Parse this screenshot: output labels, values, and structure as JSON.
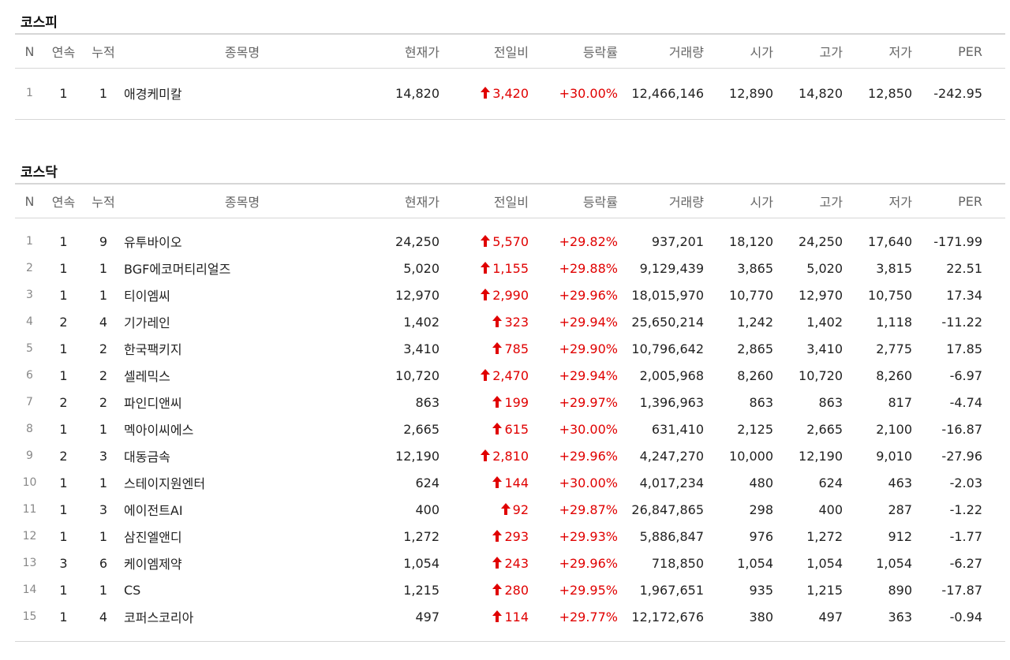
{
  "columns": {
    "n": "N",
    "consecutive": "연속",
    "cumulative": "누적",
    "name": "종목명",
    "price": "현재가",
    "change": "전일비",
    "rate": "등락률",
    "volume": "거래량",
    "open": "시가",
    "high": "고가",
    "low": "저가",
    "per": "PER"
  },
  "colors": {
    "up": "#e00000"
  },
  "icons": {
    "change": "up-arrow-icon"
  },
  "kospi": {
    "title": "코스피",
    "rows": [
      {
        "n": "1",
        "consecutive": "1",
        "cumulative": "1",
        "name": "애경케미칼",
        "price": "14,820",
        "change": "3,420",
        "rate": "+30.00%",
        "volume": "12,466,146",
        "open": "12,890",
        "high": "14,820",
        "low": "12,850",
        "per": "-242.95"
      }
    ]
  },
  "kosdaq": {
    "title": "코스닥",
    "rows": [
      {
        "n": "1",
        "consecutive": "1",
        "cumulative": "9",
        "name": "유투바이오",
        "price": "24,250",
        "change": "5,570",
        "rate": "+29.82%",
        "volume": "937,201",
        "open": "18,120",
        "high": "24,250",
        "low": "17,640",
        "per": "-171.99"
      },
      {
        "n": "2",
        "consecutive": "1",
        "cumulative": "1",
        "name": "BGF에코머티리얼즈",
        "price": "5,020",
        "change": "1,155",
        "rate": "+29.88%",
        "volume": "9,129,439",
        "open": "3,865",
        "high": "5,020",
        "low": "3,815",
        "per": "22.51"
      },
      {
        "n": "3",
        "consecutive": "1",
        "cumulative": "1",
        "name": "티이엠씨",
        "price": "12,970",
        "change": "2,990",
        "rate": "+29.96%",
        "volume": "18,015,970",
        "open": "10,770",
        "high": "12,970",
        "low": "10,750",
        "per": "17.34"
      },
      {
        "n": "4",
        "consecutive": "2",
        "cumulative": "4",
        "name": "기가레인",
        "price": "1,402",
        "change": "323",
        "rate": "+29.94%",
        "volume": "25,650,214",
        "open": "1,242",
        "high": "1,402",
        "low": "1,118",
        "per": "-11.22"
      },
      {
        "n": "5",
        "consecutive": "1",
        "cumulative": "2",
        "name": "한국팩키지",
        "price": "3,410",
        "change": "785",
        "rate": "+29.90%",
        "volume": "10,796,642",
        "open": "2,865",
        "high": "3,410",
        "low": "2,775",
        "per": "17.85"
      },
      {
        "n": "6",
        "consecutive": "1",
        "cumulative": "2",
        "name": "셀레믹스",
        "price": "10,720",
        "change": "2,470",
        "rate": "+29.94%",
        "volume": "2,005,968",
        "open": "8,260",
        "high": "10,720",
        "low": "8,260",
        "per": "-6.97"
      },
      {
        "n": "7",
        "consecutive": "2",
        "cumulative": "2",
        "name": "파인디앤씨",
        "price": "863",
        "change": "199",
        "rate": "+29.97%",
        "volume": "1,396,963",
        "open": "863",
        "high": "863",
        "low": "817",
        "per": "-4.74"
      },
      {
        "n": "8",
        "consecutive": "1",
        "cumulative": "1",
        "name": "멕아이씨에스",
        "price": "2,665",
        "change": "615",
        "rate": "+30.00%",
        "volume": "631,410",
        "open": "2,125",
        "high": "2,665",
        "low": "2,100",
        "per": "-16.87"
      },
      {
        "n": "9",
        "consecutive": "2",
        "cumulative": "3",
        "name": "대동금속",
        "price": "12,190",
        "change": "2,810",
        "rate": "+29.96%",
        "volume": "4,247,270",
        "open": "10,000",
        "high": "12,190",
        "low": "9,010",
        "per": "-27.96"
      },
      {
        "n": "10",
        "consecutive": "1",
        "cumulative": "1",
        "name": "스테이지원엔터",
        "price": "624",
        "change": "144",
        "rate": "+30.00%",
        "volume": "4,017,234",
        "open": "480",
        "high": "624",
        "low": "463",
        "per": "-2.03"
      },
      {
        "n": "11",
        "consecutive": "1",
        "cumulative": "3",
        "name": "에이전트AI",
        "price": "400",
        "change": "92",
        "rate": "+29.87%",
        "volume": "26,847,865",
        "open": "298",
        "high": "400",
        "low": "287",
        "per": "-1.22"
      },
      {
        "n": "12",
        "consecutive": "1",
        "cumulative": "1",
        "name": "삼진엘앤디",
        "price": "1,272",
        "change": "293",
        "rate": "+29.93%",
        "volume": "5,886,847",
        "open": "976",
        "high": "1,272",
        "low": "912",
        "per": "-1.77"
      },
      {
        "n": "13",
        "consecutive": "3",
        "cumulative": "6",
        "name": "케이엠제약",
        "price": "1,054",
        "change": "243",
        "rate": "+29.96%",
        "volume": "718,850",
        "open": "1,054",
        "high": "1,054",
        "low": "1,054",
        "per": "-6.27"
      },
      {
        "n": "14",
        "consecutive": "1",
        "cumulative": "1",
        "name": "CS",
        "price": "1,215",
        "change": "280",
        "rate": "+29.95%",
        "volume": "1,967,651",
        "open": "935",
        "high": "1,215",
        "low": "890",
        "per": "-17.87"
      },
      {
        "n": "15",
        "consecutive": "1",
        "cumulative": "4",
        "name": "코퍼스코리아",
        "price": "497",
        "change": "114",
        "rate": "+29.77%",
        "volume": "12,172,676",
        "open": "380",
        "high": "497",
        "low": "363",
        "per": "-0.94"
      }
    ]
  }
}
